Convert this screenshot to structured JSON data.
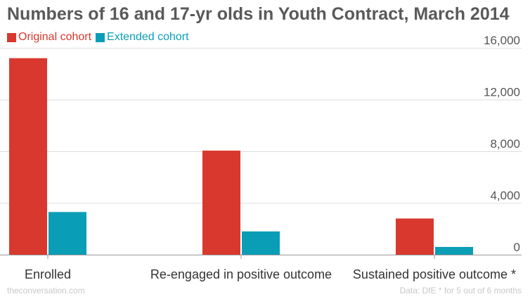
{
  "chart_data": {
    "type": "bar",
    "title": "Numbers of 16 and 17-yr olds in Youth Contract, March 2014",
    "categories": [
      "Enrolled",
      "Re-engaged in positive outcome",
      "Sustained positive outcome *"
    ],
    "series": [
      {
        "name": "Original cohort",
        "color": "#d9382e",
        "values": [
          15200,
          8050,
          2800
        ]
      },
      {
        "name": "Extended cohort",
        "color": "#0a9eb6",
        "values": [
          3300,
          1800,
          600
        ]
      }
    ],
    "y_ticks": [
      {
        "value": 0,
        "label": "0"
      },
      {
        "value": 4000,
        "label": "4,000"
      },
      {
        "value": 8000,
        "label": "8,000"
      },
      {
        "value": 12000,
        "label": "12,000"
      },
      {
        "value": 16000,
        "label": "16,000"
      }
    ],
    "ylim": [
      0,
      16000
    ],
    "y_axis_position": "right",
    "grid": true,
    "legend_position": "top-left",
    "source_left": "theconversation.com",
    "source_right": "Data: DfE * for 5 out of 6 months",
    "colors": {
      "title": "#595959",
      "grid": "#dddddd",
      "axis_text": "#555555",
      "category_text": "#333333",
      "source_text": "#c8c8c8"
    }
  }
}
